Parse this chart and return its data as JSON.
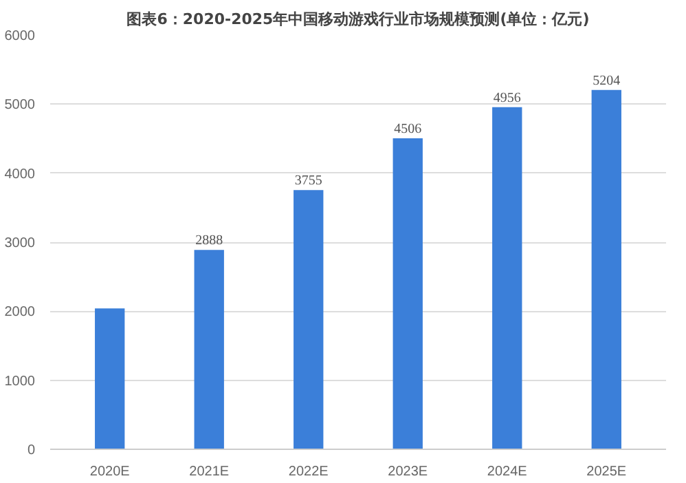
{
  "chart_data": {
    "type": "bar",
    "title": "图表6：2020-2025年中国移动游戏行业市场规模预测(单位：亿元)",
    "categories": [
      "2020E",
      "2021E",
      "2022E",
      "2023E",
      "2024E",
      "2025E"
    ],
    "values": [
      2040,
      2888,
      3755,
      4506,
      4956,
      5204
    ],
    "value_labels": [
      null,
      "2888",
      "3755",
      "4506",
      "4956",
      "5204"
    ],
    "color": "#3b7fd9",
    "ylim": [
      0,
      6000
    ],
    "yticks": [
      0,
      1000,
      2000,
      3000,
      4000,
      5000,
      6000
    ],
    "grid": "y"
  }
}
